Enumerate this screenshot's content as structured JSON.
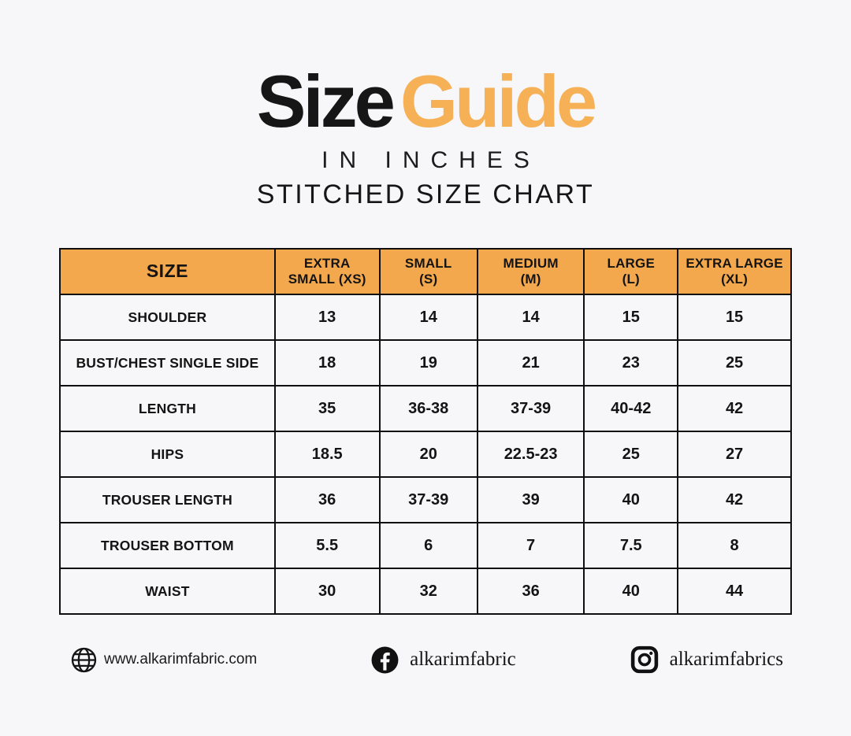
{
  "header": {
    "title_part1": "Size",
    "title_part2": "Guide",
    "title_accent_color": "#F6B156",
    "subtitle": "IN INCHES",
    "subtitle2": "STITCHED SIZE CHART"
  },
  "size_chart": {
    "header_bg": "#F4A84D",
    "columns": [
      "SIZE",
      "EXTRA\nSMALL (XS)",
      "SMALL\n(S)",
      "MEDIUM\n(M)",
      "LARGE\n(L)",
      "EXTRA LARGE\n(XL)"
    ],
    "rows": [
      [
        "SHOULDER",
        "13",
        "14",
        "14",
        "15",
        "15"
      ],
      [
        "BUST/CHEST SINGLE SIDE",
        "18",
        "19",
        "21",
        "23",
        "25"
      ],
      [
        "LENGTH",
        "35",
        "36-38",
        "37-39",
        "40-42",
        "42"
      ],
      [
        "HIPS",
        "18.5",
        "20",
        "22.5-23",
        "25",
        "27"
      ],
      [
        "TROUSER LENGTH",
        "36",
        "37-39",
        "39",
        "40",
        "42"
      ],
      [
        "TROUSER BOTTOM",
        "5.5",
        "6",
        "7",
        "7.5",
        "8"
      ],
      [
        "WAIST",
        "30",
        "32",
        "36",
        "40",
        "44"
      ]
    ]
  },
  "chart_data": {
    "type": "table",
    "title": "Size Guide — Stitched Size Chart (inches)",
    "columns": [
      "SIZE",
      "EXTRA SMALL (XS)",
      "SMALL (S)",
      "MEDIUM (M)",
      "LARGE (L)",
      "EXTRA LARGE (XL)"
    ],
    "rows": [
      [
        "SHOULDER",
        "13",
        "14",
        "14",
        "15",
        "15"
      ],
      [
        "BUST/CHEST SINGLE SIDE",
        "18",
        "19",
        "21",
        "23",
        "25"
      ],
      [
        "LENGTH",
        "35",
        "36-38",
        "37-39",
        "40-42",
        "42"
      ],
      [
        "HIPS",
        "18.5",
        "20",
        "22.5-23",
        "25",
        "27"
      ],
      [
        "TROUSER LENGTH",
        "36",
        "37-39",
        "39",
        "40",
        "42"
      ],
      [
        "TROUSER BOTTOM",
        "5.5",
        "6",
        "7",
        "7.5",
        "8"
      ],
      [
        "WAIST",
        "30",
        "32",
        "36",
        "40",
        "44"
      ]
    ]
  },
  "footer": {
    "website": "www.alkarimfabric.com",
    "facebook": "alkarimfabric",
    "instagram": "alkarimfabrics"
  }
}
